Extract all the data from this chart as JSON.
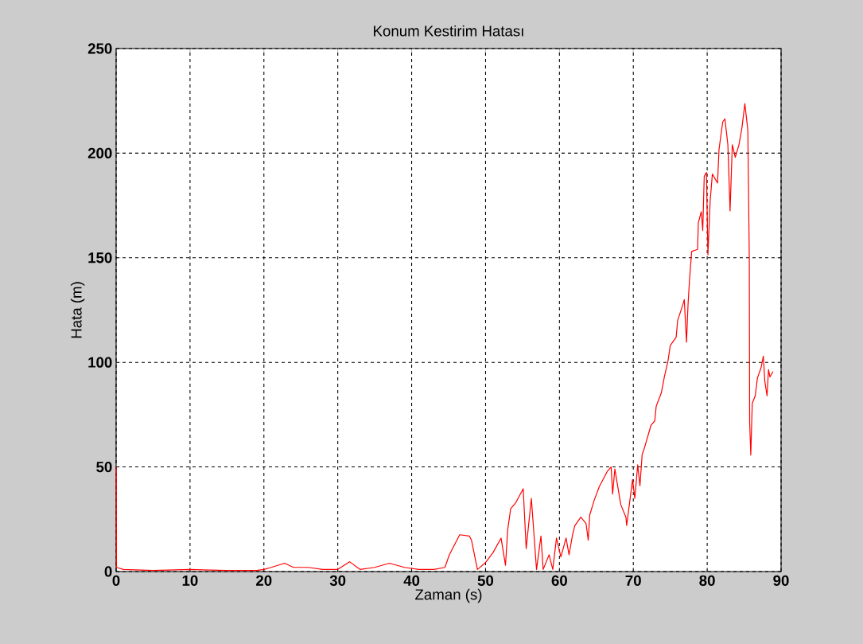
{
  "chart_data": {
    "type": "line",
    "title": "Konum Kestirim Hatası",
    "xlabel": "Zaman (s)",
    "ylabel": "Hata (m)",
    "xlim": [
      0,
      90
    ],
    "ylim": [
      0,
      250
    ],
    "xticks": [
      0,
      10,
      20,
      30,
      40,
      50,
      60,
      70,
      80,
      90
    ],
    "yticks": [
      0,
      50,
      100,
      150,
      200,
      250
    ],
    "grid": true,
    "line_style": "solid",
    "marker": "none",
    "series": [
      {
        "color": "#ff0000",
        "x": [
          0,
          0.05,
          1,
          5,
          10,
          15,
          19,
          20,
          21,
          22.8,
          24,
          26,
          28,
          30,
          31.6,
          33,
          35,
          37,
          39,
          41,
          43,
          44.5,
          45.1,
          46.5,
          47.8,
          48.1,
          48.9,
          50,
          51,
          52.1,
          52.7,
          53,
          53.4,
          54.1,
          55.1,
          55.5,
          56.2,
          56.9,
          57.5,
          57.8,
          58.6,
          59.1,
          59.6,
          60.2,
          60.9,
          61.3,
          61.8,
          62.1,
          62.9,
          63.6,
          63.9,
          64.1,
          64.7,
          65.4,
          66.5,
          67,
          67.2,
          67.5,
          68.3,
          69,
          69.1,
          69.9,
          70.2,
          70.6,
          70.9,
          71.2,
          71.5,
          72.4,
          72.9,
          73.1,
          73.8,
          74.2,
          74.7,
          75,
          75.8,
          76,
          76.7,
          76.9,
          77.2,
          77.4,
          77.6,
          77.9,
          78.7,
          78.8,
          79.2,
          79.4,
          79.6,
          79.9,
          80.1,
          80.4,
          80.7,
          81.4,
          81.6,
          82.1,
          82.4,
          82.8,
          83.1,
          83.4,
          83.8,
          84.3,
          84.7,
          85.1,
          85.5,
          85.7,
          85.75,
          85.9,
          86.1,
          86.5,
          86.8,
          87.3,
          87.6,
          87.8,
          88.1,
          88.3,
          88.5,
          88.9
        ],
        "values": [
          50,
          2,
          1,
          0.5,
          1,
          0.5,
          0.5,
          1,
          2,
          4,
          2,
          2,
          1,
          1,
          4.7,
          1,
          2,
          4,
          2,
          1,
          1,
          2,
          8,
          17.6,
          17,
          15,
          1,
          4.3,
          9,
          16,
          3,
          20,
          30,
          33,
          39.6,
          11,
          35,
          1,
          17,
          1,
          8,
          1,
          16,
          7,
          16,
          8,
          18,
          22,
          26,
          23,
          15,
          27,
          34,
          40.6,
          48,
          50,
          37,
          49,
          32,
          26,
          22,
          44,
          35,
          51,
          41,
          56,
          59,
          70,
          72,
          79,
          85.5,
          93,
          100.7,
          108,
          112,
          120,
          127.5,
          130,
          109.6,
          127,
          139,
          153,
          154,
          166.7,
          172,
          163,
          188.9,
          190.8,
          151.4,
          177,
          190,
          185.7,
          201.7,
          214.9,
          216.4,
          204,
          172.4,
          204,
          198,
          204,
          212,
          223.7,
          211,
          150,
          71.5,
          55.7,
          80.4,
          84,
          92.5,
          97.5,
          103,
          91,
          84,
          96.5,
          93,
          95.6
        ]
      }
    ]
  }
}
